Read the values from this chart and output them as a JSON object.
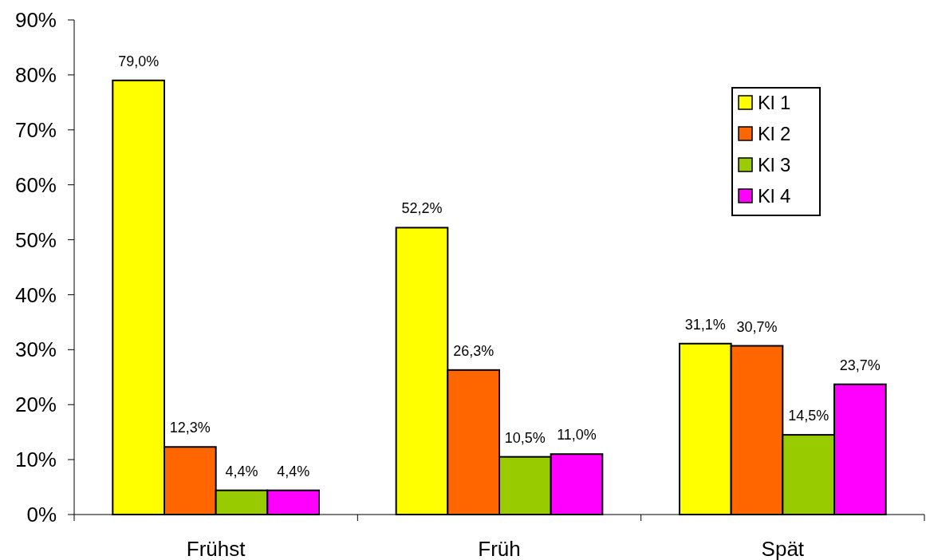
{
  "chart_data": {
    "type": "bar",
    "categories": [
      "Frühst",
      "Früh",
      "Spät"
    ],
    "series": [
      {
        "name": "Kl 1",
        "color": "#ffff00",
        "values": [
          79.0,
          52.2,
          31.1
        ],
        "value_labels": [
          "79,0%",
          "52,2%",
          "31,1%"
        ]
      },
      {
        "name": "Kl 2",
        "color": "#ff6600",
        "values": [
          12.3,
          26.3,
          30.7
        ],
        "value_labels": [
          "12,3%",
          "26,3%",
          "30,7%"
        ]
      },
      {
        "name": "Kl 3",
        "color": "#99cc00",
        "values": [
          4.4,
          10.5,
          14.5
        ],
        "value_labels": [
          "4,4%",
          "10,5%",
          "14,5%"
        ]
      },
      {
        "name": "Kl 4",
        "color": "#ff00ff",
        "values": [
          4.4,
          11.0,
          23.7
        ],
        "value_labels": [
          "4,4%",
          "11,0%",
          "23,7%"
        ]
      }
    ],
    "ylim": [
      0,
      90
    ],
    "yticks": [
      {
        "value": 0,
        "label": "0%"
      },
      {
        "value": 10,
        "label": "10%"
      },
      {
        "value": 20,
        "label": "20%"
      },
      {
        "value": 30,
        "label": "30%"
      },
      {
        "value": 40,
        "label": "40%"
      },
      {
        "value": 50,
        "label": "50%"
      },
      {
        "value": 60,
        "label": "60%"
      },
      {
        "value": 70,
        "label": "70%"
      },
      {
        "value": 80,
        "label": "80%"
      },
      {
        "value": 90,
        "label": "90%"
      }
    ],
    "legend": "top right"
  }
}
